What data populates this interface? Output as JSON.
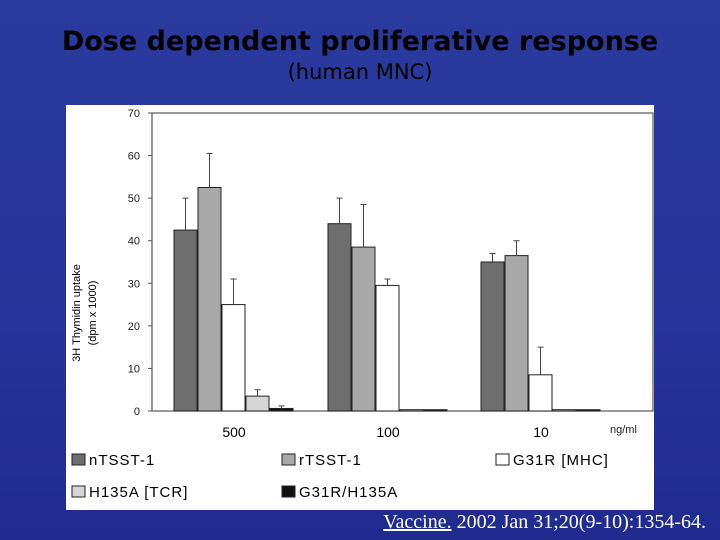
{
  "slide": {
    "title": "Dose dependent proliferative response",
    "subtitle": "(human MNC)",
    "citation_link": "Vaccine.",
    "citation_rest": " 2002 Jan 31;20(9-10):1354-64."
  },
  "colors": {
    "background": "#2a3a9e",
    "nTSST-1": "#6e6e6e",
    "rTSST-1": "#a8a8a8",
    "G31R [MHC]": "#ffffff",
    "H135A [TCR]": "#d6d6d6",
    "G31R/H135A": "#111111"
  },
  "chart_data": {
    "type": "bar",
    "ylabel_line1": "3H Thymidin uptake",
    "ylabel_line2": "(dpm x 1000)",
    "xunit": "ng/ml",
    "ylim": [
      0,
      70
    ],
    "yticks": [
      "0",
      "10",
      "20",
      "30",
      "40",
      "50",
      "60",
      "70"
    ],
    "grid": false,
    "legend_position": "bottom",
    "categories": [
      "500",
      "100",
      "10"
    ],
    "series": [
      {
        "name": "nTSST-1",
        "values": [
          42.5,
          44,
          35
        ],
        "errors": [
          7.5,
          6,
          2
        ]
      },
      {
        "name": "rTSST-1",
        "values": [
          52.5,
          38.5,
          36.5
        ],
        "errors": [
          8,
          10,
          3.5
        ]
      },
      {
        "name": "G31R [MHC]",
        "values": [
          25,
          29.5,
          8.5
        ],
        "errors": [
          6,
          1.5,
          6.5
        ]
      },
      {
        "name": "H135A [TCR]",
        "values": [
          3.5,
          0.3,
          0.3
        ],
        "errors": [
          1.5,
          0,
          0
        ]
      },
      {
        "name": "G31R/H135A",
        "values": [
          0.6,
          0.3,
          0.3
        ],
        "errors": [
          0.6,
          0,
          0
        ]
      }
    ]
  }
}
